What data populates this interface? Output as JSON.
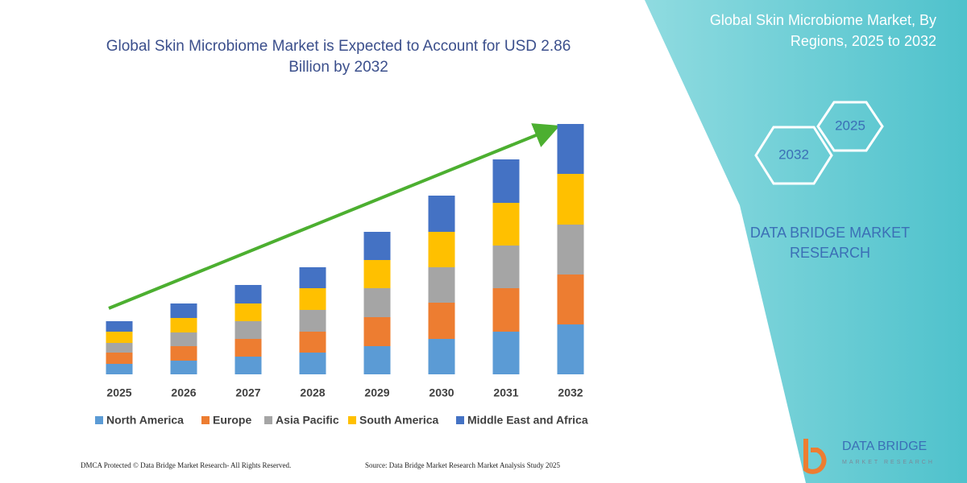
{
  "chart_data": {
    "type": "stacked_bar",
    "title": "Global Skin Microbiome Market is Expected to Account for USD 2.86 Billion by 2032",
    "categories": [
      "2025",
      "2026",
      "2027",
      "2028",
      "2029",
      "2030",
      "2031",
      "2032"
    ],
    "ylim": [
      0,
      320
    ],
    "series": [
      {
        "name": "North America",
        "color": "#5b9bd5",
        "values": [
          13,
          17,
          22,
          27,
          35,
          44,
          53,
          62
        ]
      },
      {
        "name": "Europe",
        "color": "#ed7d31",
        "values": [
          14,
          18,
          22,
          26,
          36,
          45,
          54,
          62
        ]
      },
      {
        "name": "Asia Pacific",
        "color": "#a5a5a5",
        "values": [
          12,
          17,
          22,
          27,
          36,
          44,
          53,
          62
        ]
      },
      {
        "name": "South America",
        "color": "#ffc000",
        "values": [
          14,
          18,
          22,
          27,
          35,
          44,
          53,
          63
        ]
      },
      {
        "name": "Middle East and Africa",
        "color": "#4472c4",
        "values": [
          13,
          18,
          23,
          26,
          35,
          45,
          54,
          62
        ]
      }
    ]
  },
  "panel": {
    "title": "Global Skin Microbiome Market, By Regions, 2025 to 2032",
    "hex_labels": [
      "2025",
      "2032"
    ],
    "brand": "DATA BRIDGE MARKET RESEARCH"
  },
  "footer": {
    "dmca": "DMCA Protected © Data Bridge Market Research- All Rights Reserved.",
    "source": "Source: Data Bridge Market Research Market Analysis Study 2025"
  },
  "logo": {
    "name": "DATA BRIDGE",
    "tagline": "MARKET RESEARCH"
  }
}
